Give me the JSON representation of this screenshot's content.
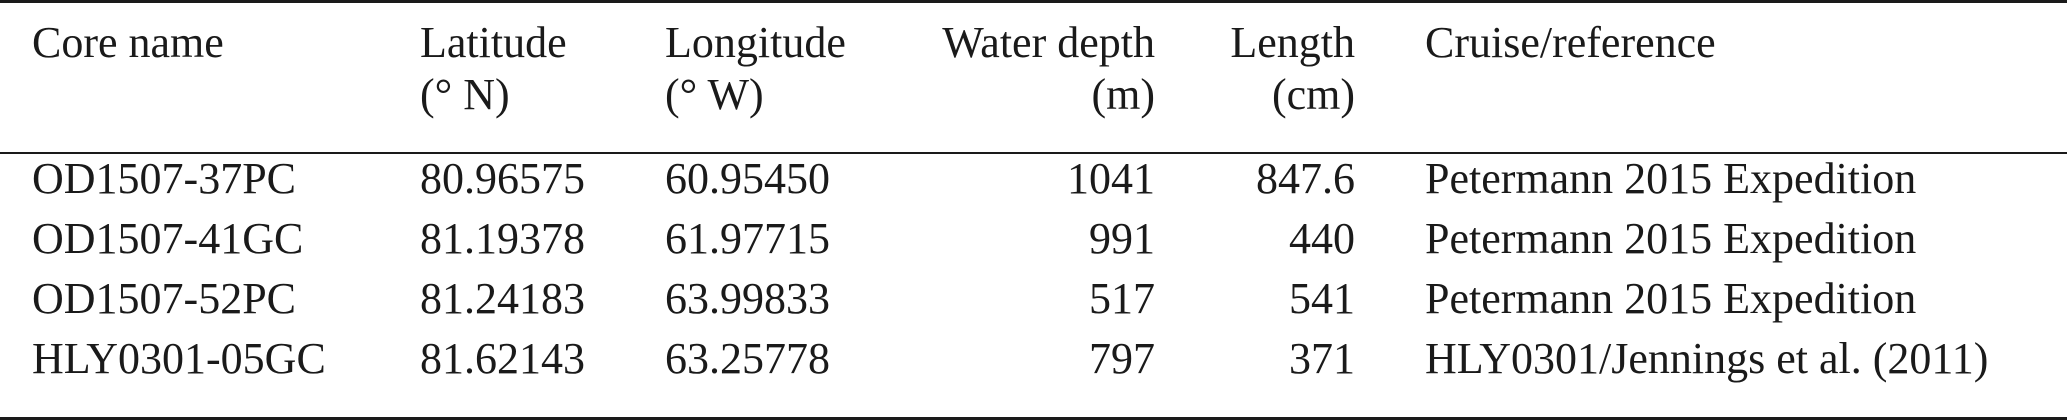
{
  "table": {
    "headers": [
      {
        "line1": "Core name",
        "line2": ""
      },
      {
        "line1": "Latitude",
        "line2": "(° N)"
      },
      {
        "line1": "Longitude",
        "line2": "(° W)"
      },
      {
        "line1": "Water depth",
        "line2": "(m)"
      },
      {
        "line1": "Length",
        "line2": "(cm)"
      },
      {
        "line1": "Cruise/reference",
        "line2": ""
      }
    ],
    "rows": [
      [
        "OD1507-37PC",
        "80.96575",
        "60.95450",
        "1041",
        "847.6",
        "Petermann 2015 Expedition"
      ],
      [
        "OD1507-41GC",
        "81.19378",
        "61.97715",
        "991",
        "440",
        "Petermann 2015 Expedition"
      ],
      [
        "OD1507-52PC",
        "81.24183",
        "63.99833",
        "517",
        "541",
        "Petermann 2015 Expedition"
      ],
      [
        "HLY0301-05GC",
        "81.62143",
        "63.25778",
        "797",
        "371",
        "HLY0301/Jennings et al. (2011)"
      ]
    ]
  }
}
